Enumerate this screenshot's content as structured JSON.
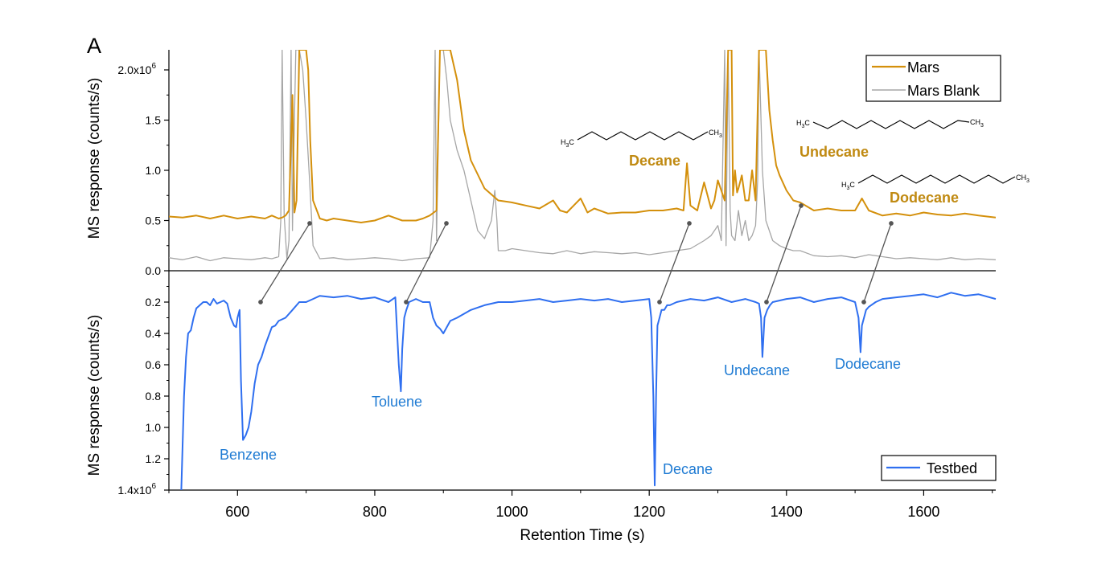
{
  "panel_label": "A",
  "colors": {
    "mars": "#D4900C",
    "blank": "#A6A6A6",
    "testbed": "#2F6FF0",
    "testbed_label": "#1F7BD3",
    "mars_label": "#C08A12",
    "axis": "#000000"
  },
  "chart_data": [
    {
      "type": "line",
      "title": "",
      "xlabel": "Retention Time (s)",
      "ylabel": "MS response (counts/s)",
      "xlim": [
        500,
        1705
      ],
      "ylim": [
        0,
        2.2
      ],
      "y_multiplier": "x10^6",
      "yticks": [
        "0.0",
        "0.5",
        "1.0",
        "1.5",
        "2.0x10"
      ],
      "ytick_top_exp": "6",
      "legend": {
        "placement": "top-right",
        "entries": [
          "Mars",
          "Mars Blank"
        ]
      },
      "series": [
        {
          "name": "Mars",
          "x": [
            500,
            520,
            540,
            560,
            580,
            600,
            620,
            640,
            650,
            660,
            665,
            670,
            675,
            680,
            683,
            686,
            690,
            695,
            700,
            703,
            706,
            710,
            720,
            730,
            740,
            760,
            780,
            800,
            820,
            840,
            860,
            870,
            880,
            890,
            895,
            900,
            905,
            910,
            920,
            930,
            940,
            960,
            980,
            1000,
            1020,
            1040,
            1060,
            1070,
            1080,
            1100,
            1110,
            1120,
            1140,
            1160,
            1180,
            1200,
            1220,
            1240,
            1250,
            1255,
            1260,
            1270,
            1280,
            1290,
            1295,
            1300,
            1310,
            1315,
            1318,
            1320,
            1322,
            1325,
            1328,
            1330,
            1335,
            1340,
            1345,
            1350,
            1355,
            1360,
            1365,
            1370,
            1375,
            1380,
            1385,
            1390,
            1400,
            1410,
            1420,
            1440,
            1460,
            1480,
            1500,
            1510,
            1520,
            1540,
            1560,
            1580,
            1600,
            1620,
            1640,
            1660,
            1680,
            1705
          ],
          "values": [
            0.54,
            0.53,
            0.55,
            0.52,
            0.55,
            0.52,
            0.54,
            0.52,
            0.55,
            0.52,
            0.53,
            0.55,
            0.6,
            1.75,
            0.58,
            0.7,
            2.3,
            2.3,
            2.3,
            2.0,
            1.3,
            0.7,
            0.52,
            0.5,
            0.52,
            0.5,
            0.48,
            0.5,
            0.55,
            0.5,
            0.5,
            0.52,
            0.55,
            0.6,
            2.3,
            2.3,
            2.3,
            2.3,
            1.9,
            1.4,
            1.1,
            0.82,
            0.7,
            0.68,
            0.65,
            0.62,
            0.7,
            0.6,
            0.58,
            0.72,
            0.58,
            0.62,
            0.57,
            0.58,
            0.58,
            0.6,
            0.6,
            0.62,
            0.6,
            1.07,
            0.65,
            0.6,
            0.88,
            0.62,
            0.7,
            0.9,
            0.7,
            2.3,
            2.3,
            2.3,
            0.75,
            1.0,
            0.78,
            0.82,
            0.95,
            0.7,
            0.7,
            1.0,
            0.7,
            2.3,
            2.3,
            2.3,
            1.6,
            1.3,
            1.05,
            0.95,
            0.8,
            0.7,
            0.68,
            0.6,
            0.62,
            0.6,
            0.6,
            0.72,
            0.6,
            0.55,
            0.57,
            0.55,
            0.58,
            0.56,
            0.55,
            0.57,
            0.55,
            0.53
          ]
        },
        {
          "name": "Mars Blank",
          "x": [
            500,
            520,
            540,
            560,
            580,
            600,
            620,
            640,
            650,
            660,
            663,
            665,
            668,
            672,
            675,
            678,
            680,
            682,
            685,
            690,
            695,
            700,
            705,
            710,
            720,
            740,
            760,
            780,
            800,
            820,
            840,
            860,
            880,
            885,
            888,
            890,
            895,
            900,
            905,
            910,
            920,
            930,
            940,
            950,
            960,
            970,
            975,
            978,
            980,
            990,
            1000,
            1020,
            1040,
            1060,
            1080,
            1100,
            1120,
            1140,
            1160,
            1180,
            1200,
            1220,
            1240,
            1260,
            1280,
            1290,
            1300,
            1305,
            1310,
            1312,
            1315,
            1318,
            1320,
            1325,
            1330,
            1335,
            1340,
            1345,
            1350,
            1355,
            1358,
            1360,
            1365,
            1370,
            1380,
            1390,
            1400,
            1410,
            1420,
            1440,
            1460,
            1480,
            1500,
            1520,
            1540,
            1560,
            1580,
            1600,
            1620,
            1640,
            1660,
            1680,
            1705
          ],
          "values": [
            0.13,
            0.11,
            0.14,
            0.1,
            0.13,
            0.12,
            0.11,
            0.13,
            0.12,
            0.14,
            0.5,
            2.3,
            0.55,
            0.12,
            0.3,
            2.3,
            0.4,
            1.2,
            2.3,
            2.3,
            2.0,
            1.5,
            0.9,
            0.25,
            0.12,
            0.13,
            0.11,
            0.12,
            0.13,
            0.12,
            0.1,
            0.12,
            0.13,
            0.5,
            2.3,
            0.3,
            2.3,
            2.3,
            1.9,
            1.5,
            1.2,
            1.0,
            0.7,
            0.4,
            0.32,
            0.5,
            0.8,
            0.5,
            0.2,
            0.2,
            0.22,
            0.2,
            0.18,
            0.17,
            0.2,
            0.17,
            0.19,
            0.18,
            0.17,
            0.18,
            0.16,
            0.18,
            0.2,
            0.22,
            0.3,
            0.35,
            0.45,
            0.3,
            2.3,
            0.25,
            2.3,
            0.6,
            0.35,
            0.3,
            0.6,
            0.35,
            0.5,
            0.3,
            0.35,
            0.45,
            0.9,
            2.3,
            1.0,
            0.5,
            0.3,
            0.25,
            0.22,
            0.2,
            0.2,
            0.15,
            0.14,
            0.15,
            0.13,
            0.16,
            0.14,
            0.12,
            0.13,
            0.12,
            0.11,
            0.13,
            0.11,
            0.12,
            0.11
          ]
        }
      ],
      "annotations": [
        "Decane",
        "Undecane",
        "Dodecane"
      ]
    },
    {
      "type": "line",
      "title": "",
      "xlabel": "Retention Time (s)",
      "ylabel": "MS response (counts/s)",
      "xlim": [
        500,
        1705
      ],
      "ylim": [
        1.4,
        0.0
      ],
      "y_inverted": true,
      "y_multiplier": "x10^6",
      "yticks": [
        "0.2",
        "0.4",
        "0.6",
        "0.8",
        "1.0",
        "1.2",
        "1.4x10"
      ],
      "ytick_bottom_exp": "6",
      "xticks": [
        "600",
        "800",
        "1000",
        "1200",
        "1400",
        "1600"
      ],
      "legend": {
        "placement": "bottom-right",
        "entries": [
          "Testbed"
        ]
      },
      "series": [
        {
          "name": "Testbed",
          "x": [
            518,
            520,
            522,
            525,
            528,
            532,
            536,
            540,
            545,
            550,
            555,
            560,
            565,
            570,
            575,
            580,
            585,
            590,
            595,
            598,
            600,
            603,
            605,
            608,
            612,
            616,
            620,
            625,
            630,
            635,
            640,
            645,
            650,
            655,
            660,
            670,
            680,
            690,
            700,
            710,
            720,
            740,
            760,
            780,
            800,
            820,
            830,
            835,
            838,
            840,
            843,
            846,
            850,
            860,
            870,
            880,
            885,
            890,
            895,
            900,
            910,
            920,
            940,
            960,
            980,
            1000,
            1020,
            1040,
            1060,
            1080,
            1100,
            1120,
            1140,
            1160,
            1180,
            1200,
            1203,
            1206,
            1208,
            1210,
            1212,
            1215,
            1218,
            1222,
            1226,
            1230,
            1240,
            1260,
            1280,
            1300,
            1320,
            1340,
            1355,
            1360,
            1363,
            1365,
            1368,
            1372,
            1376,
            1380,
            1400,
            1420,
            1440,
            1460,
            1480,
            1500,
            1505,
            1508,
            1510,
            1513,
            1516,
            1520,
            1530,
            1540,
            1560,
            1580,
            1600,
            1620,
            1640,
            1660,
            1680,
            1705
          ],
          "values": [
            1.4,
            1.1,
            0.8,
            0.55,
            0.4,
            0.38,
            0.3,
            0.24,
            0.22,
            0.2,
            0.2,
            0.22,
            0.18,
            0.21,
            0.2,
            0.19,
            0.21,
            0.3,
            0.35,
            0.36,
            0.3,
            0.25,
            0.7,
            1.08,
            1.05,
            1.0,
            0.9,
            0.72,
            0.6,
            0.55,
            0.48,
            0.42,
            0.36,
            0.35,
            0.32,
            0.3,
            0.25,
            0.2,
            0.2,
            0.18,
            0.16,
            0.17,
            0.16,
            0.18,
            0.17,
            0.2,
            0.17,
            0.6,
            0.77,
            0.5,
            0.3,
            0.25,
            0.2,
            0.18,
            0.2,
            0.2,
            0.3,
            0.35,
            0.37,
            0.4,
            0.32,
            0.3,
            0.25,
            0.22,
            0.2,
            0.2,
            0.19,
            0.18,
            0.2,
            0.19,
            0.18,
            0.19,
            0.18,
            0.2,
            0.19,
            0.18,
            0.3,
            0.8,
            1.37,
            0.8,
            0.35,
            0.3,
            0.25,
            0.25,
            0.22,
            0.22,
            0.2,
            0.18,
            0.19,
            0.17,
            0.2,
            0.18,
            0.2,
            0.21,
            0.3,
            0.55,
            0.3,
            0.25,
            0.22,
            0.2,
            0.18,
            0.17,
            0.2,
            0.18,
            0.17,
            0.2,
            0.3,
            0.52,
            0.35,
            0.3,
            0.25,
            0.23,
            0.2,
            0.18,
            0.17,
            0.16,
            0.15,
            0.17,
            0.14,
            0.16,
            0.15,
            0.18
          ]
        }
      ],
      "annotations": [
        "Benzene",
        "Toluene",
        "Decane",
        "Undecane",
        "Dodecane"
      ]
    }
  ],
  "labels": {
    "mars": {
      "decane": "Decane",
      "undecane": "Undecane",
      "dodecane": "Dodecane"
    },
    "testbed": {
      "benzene": "Benzene",
      "toluene": "Toluene",
      "decane": "Decane",
      "undecane": "Undecane",
      "dodecane": "Dodecane"
    }
  },
  "structures": {
    "decane": {
      "left": "H",
      "left_sub": "3",
      "left_end": "C",
      "right": "CH",
      "right_sub": "3"
    },
    "undecane": {
      "left": "H",
      "left_sub": "3",
      "left_end": "C",
      "right": "CH",
      "right_sub": "3"
    },
    "dodecane": {
      "left": "H",
      "left_sub": "3",
      "left_end": "C",
      "right": "CH",
      "right_sub": "3"
    }
  }
}
